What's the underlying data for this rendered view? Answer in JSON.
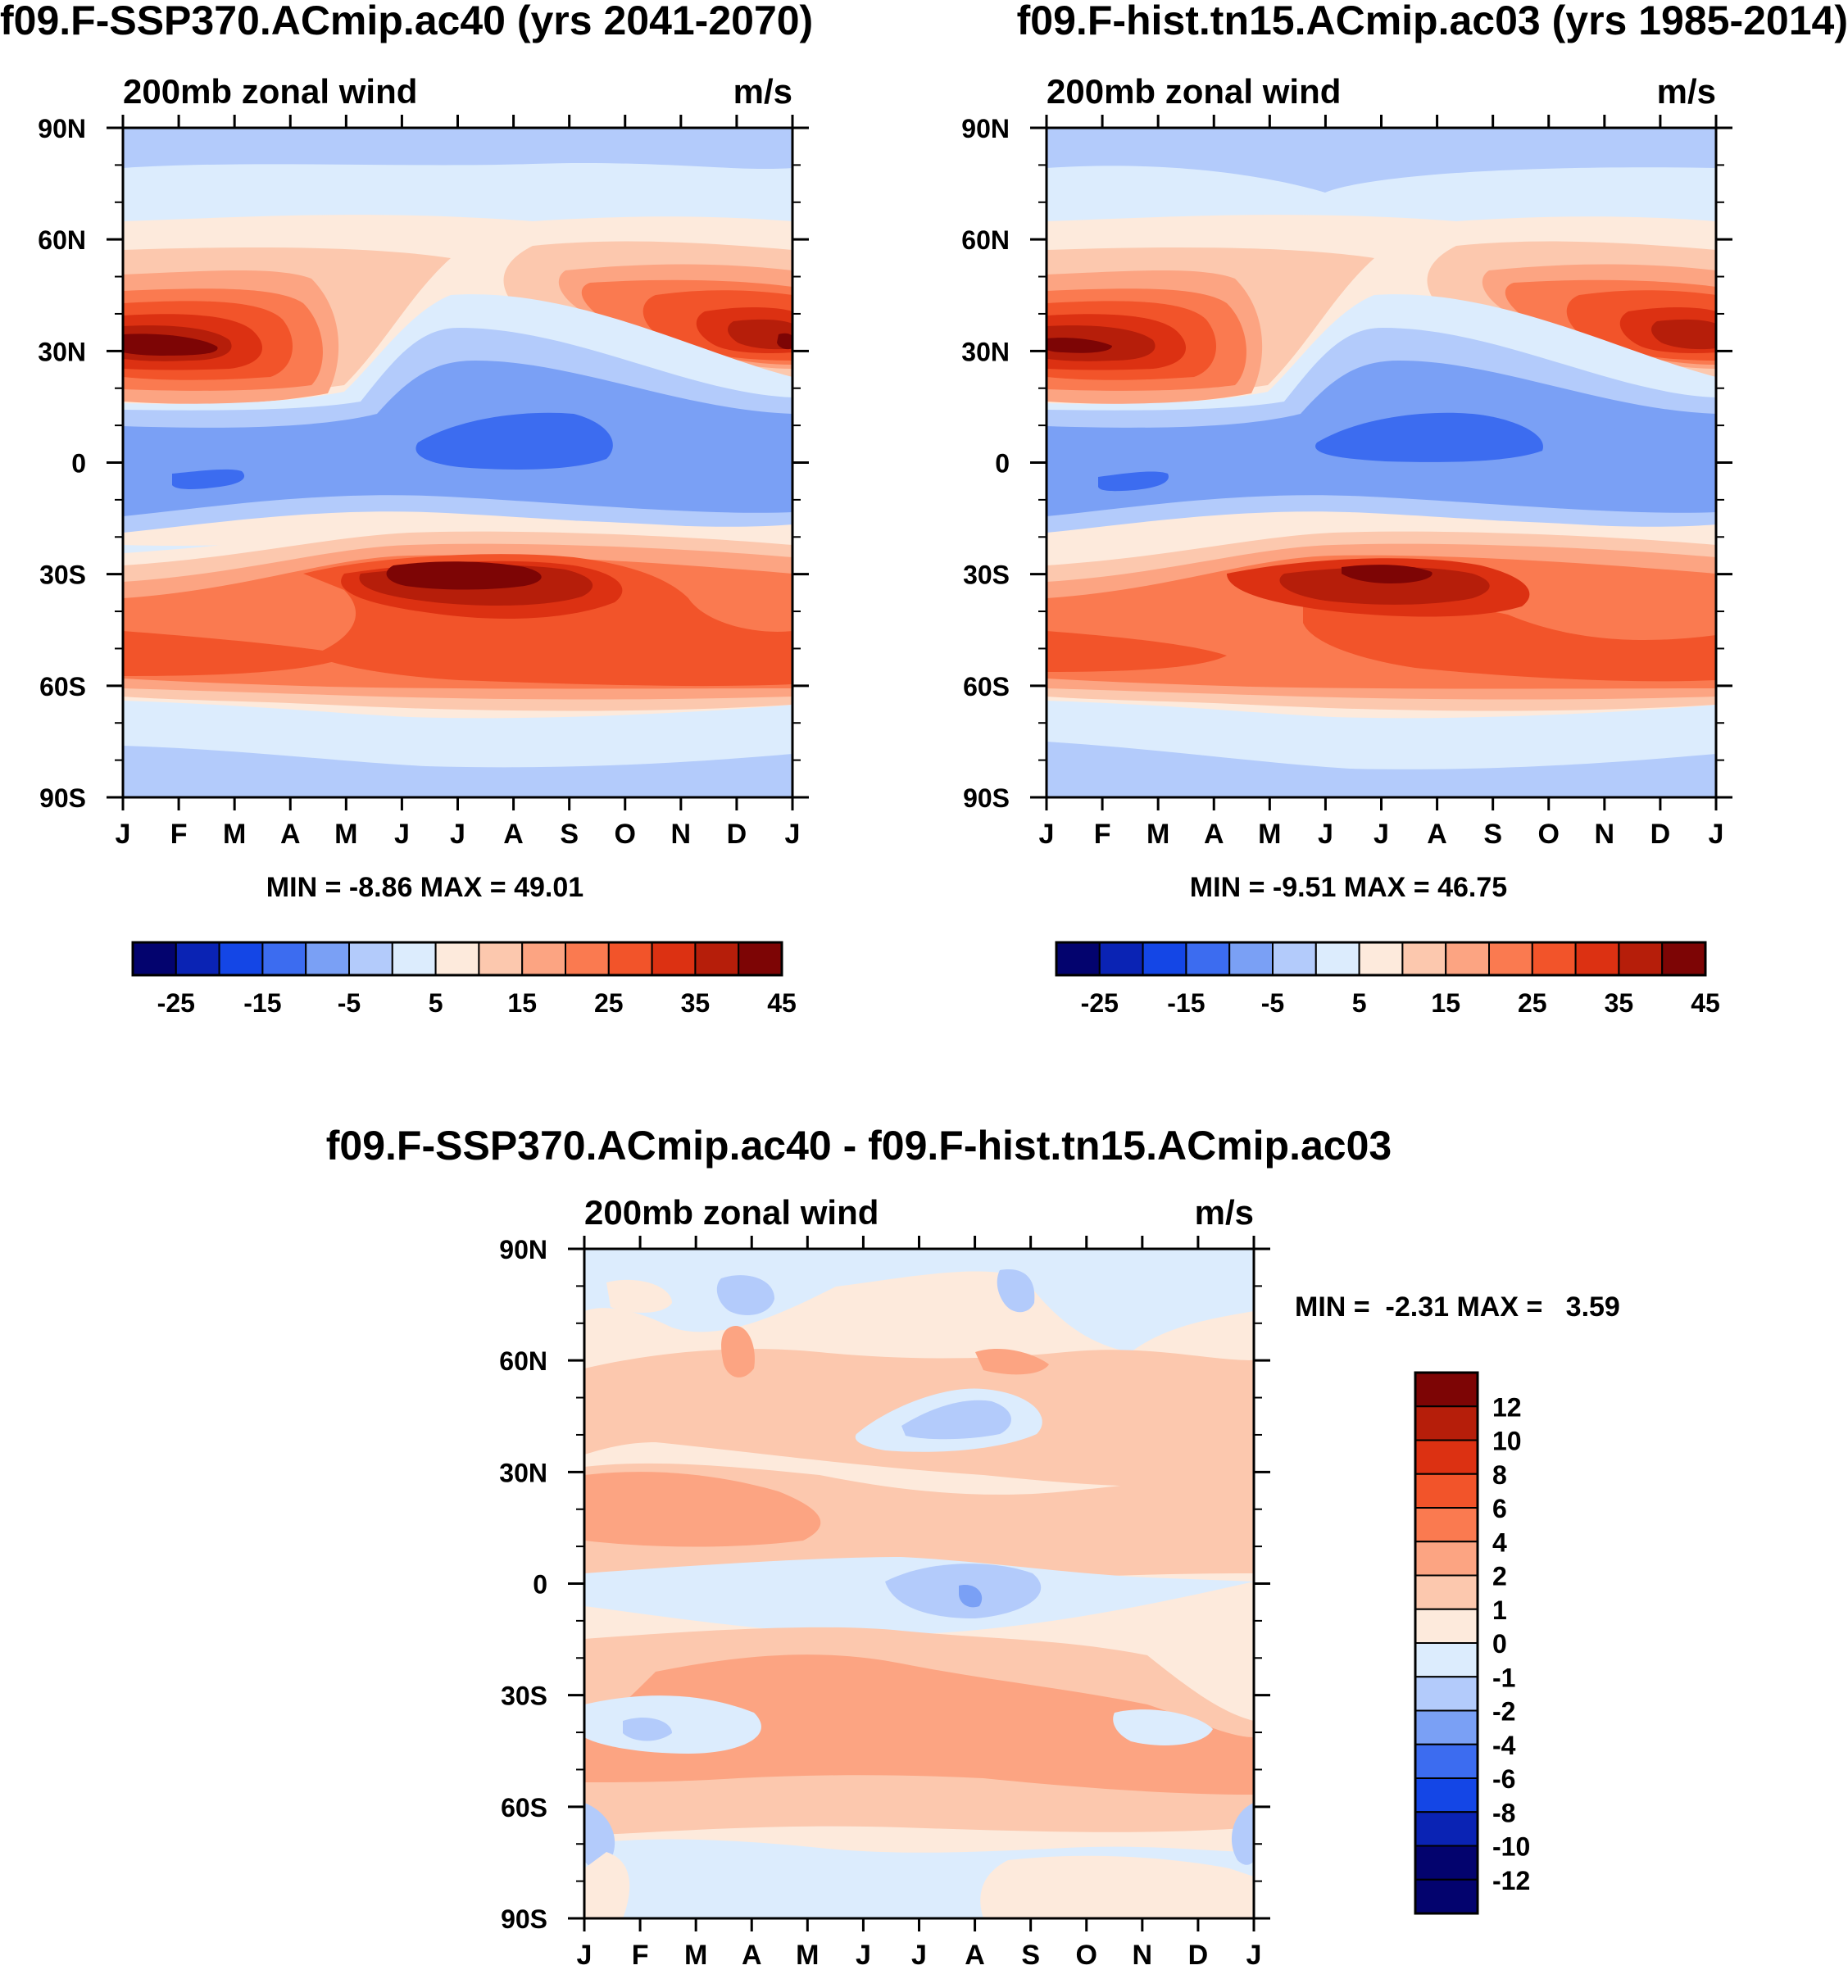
{
  "chart_data": [
    {
      "type": "heatmap",
      "title": "f09.F-SSP370.ACmip.ac40 (yrs 2041-2070)",
      "subtitle_left": "200mb zonal wind",
      "subtitle_right": "m/s",
      "x_tick_labels": [
        "J",
        "F",
        "M",
        "A",
        "M",
        "J",
        "J",
        "A",
        "S",
        "O",
        "N",
        "D",
        "J"
      ],
      "y_tick_labels": [
        "90N",
        "60N",
        "30N",
        "0",
        "30S",
        "60S",
        "90S"
      ],
      "y_values": [
        90,
        60,
        30,
        0,
        -30,
        -60,
        -90
      ],
      "stats": "MIN =  -8.86 MAX =  49.01",
      "min": -8.86,
      "max": 49.01,
      "colorbar_labels": [
        "-25",
        "-15",
        "-5",
        "5",
        "15",
        "25",
        "35",
        "45"
      ],
      "colorbar_colors": [
        "#03036e",
        "#0a23b4",
        "#1446e6",
        "#3c6cf0",
        "#7aa0f5",
        "#b3cbfb",
        "#dcecfd",
        "#fdeadc",
        "#fcc8ae",
        "#fca482",
        "#fa7a50",
        "#f2542a",
        "#dc3112",
        "#b61e0a",
        "#7d0505"
      ],
      "features": {
        "nh_jet_max_ms": 47,
        "nh_jet_lat_winter": 30,
        "sh_jet_max_ms": 49,
        "sh_jet_lat_winter": -30,
        "tropical_easterly_min_ms": -8.86
      }
    },
    {
      "type": "heatmap",
      "title": "f09.F-hist.tn15.ACmip.ac03 (yrs 1985-2014)",
      "subtitle_left": "200mb zonal wind",
      "subtitle_right": "m/s",
      "x_tick_labels": [
        "J",
        "F",
        "M",
        "A",
        "M",
        "J",
        "J",
        "A",
        "S",
        "O",
        "N",
        "D",
        "J"
      ],
      "y_tick_labels": [
        "90N",
        "60N",
        "30N",
        "0",
        "30S",
        "60S",
        "90S"
      ],
      "y_values": [
        90,
        60,
        30,
        0,
        -30,
        -60,
        -90
      ],
      "stats": "MIN =  -9.51 MAX =  46.75",
      "min": -9.51,
      "max": 46.75,
      "colorbar_labels": [
        "-25",
        "-15",
        "-5",
        "5",
        "15",
        "25",
        "35",
        "45"
      ],
      "features": {
        "nh_jet_max_ms": 45,
        "nh_jet_lat_winter": 30,
        "sh_jet_max_ms": 46.75,
        "sh_jet_lat_winter": -30,
        "tropical_easterly_min_ms": -9.51
      }
    },
    {
      "type": "heatmap",
      "title": "f09.F-SSP370.ACmip.ac40 - f09.F-hist.tn15.ACmip.ac03",
      "subtitle_left": "200mb zonal wind",
      "subtitle_right": "m/s",
      "x_tick_labels": [
        "J",
        "F",
        "M",
        "A",
        "M",
        "J",
        "J",
        "A",
        "S",
        "O",
        "N",
        "D",
        "J"
      ],
      "y_tick_labels": [
        "90N",
        "60N",
        "30N",
        "0",
        "30S",
        "60S",
        "90S"
      ],
      "y_values": [
        90,
        60,
        30,
        0,
        -30,
        -60,
        -90
      ],
      "stats": "MIN =  -2.31 MAX =   3.59",
      "min": -2.31,
      "max": 3.59,
      "colorbar_labels": [
        "12",
        "10",
        "8",
        "6",
        "4",
        "2",
        "1",
        "0",
        "-1",
        "-2",
        "-4",
        "-6",
        "-8",
        "-10",
        "-12"
      ],
      "colorbar_colors": [
        "#7d0505",
        "#b61e0a",
        "#dc3112",
        "#f2542a",
        "#fa7a50",
        "#fca482",
        "#fcc8ae",
        "#fdeadc",
        "#dcecfd",
        "#b3cbfb",
        "#7aa0f5",
        "#3c6cf0",
        "#1446e6",
        "#0a23b4",
        "#03036e",
        "#03036e"
      ]
    }
  ]
}
